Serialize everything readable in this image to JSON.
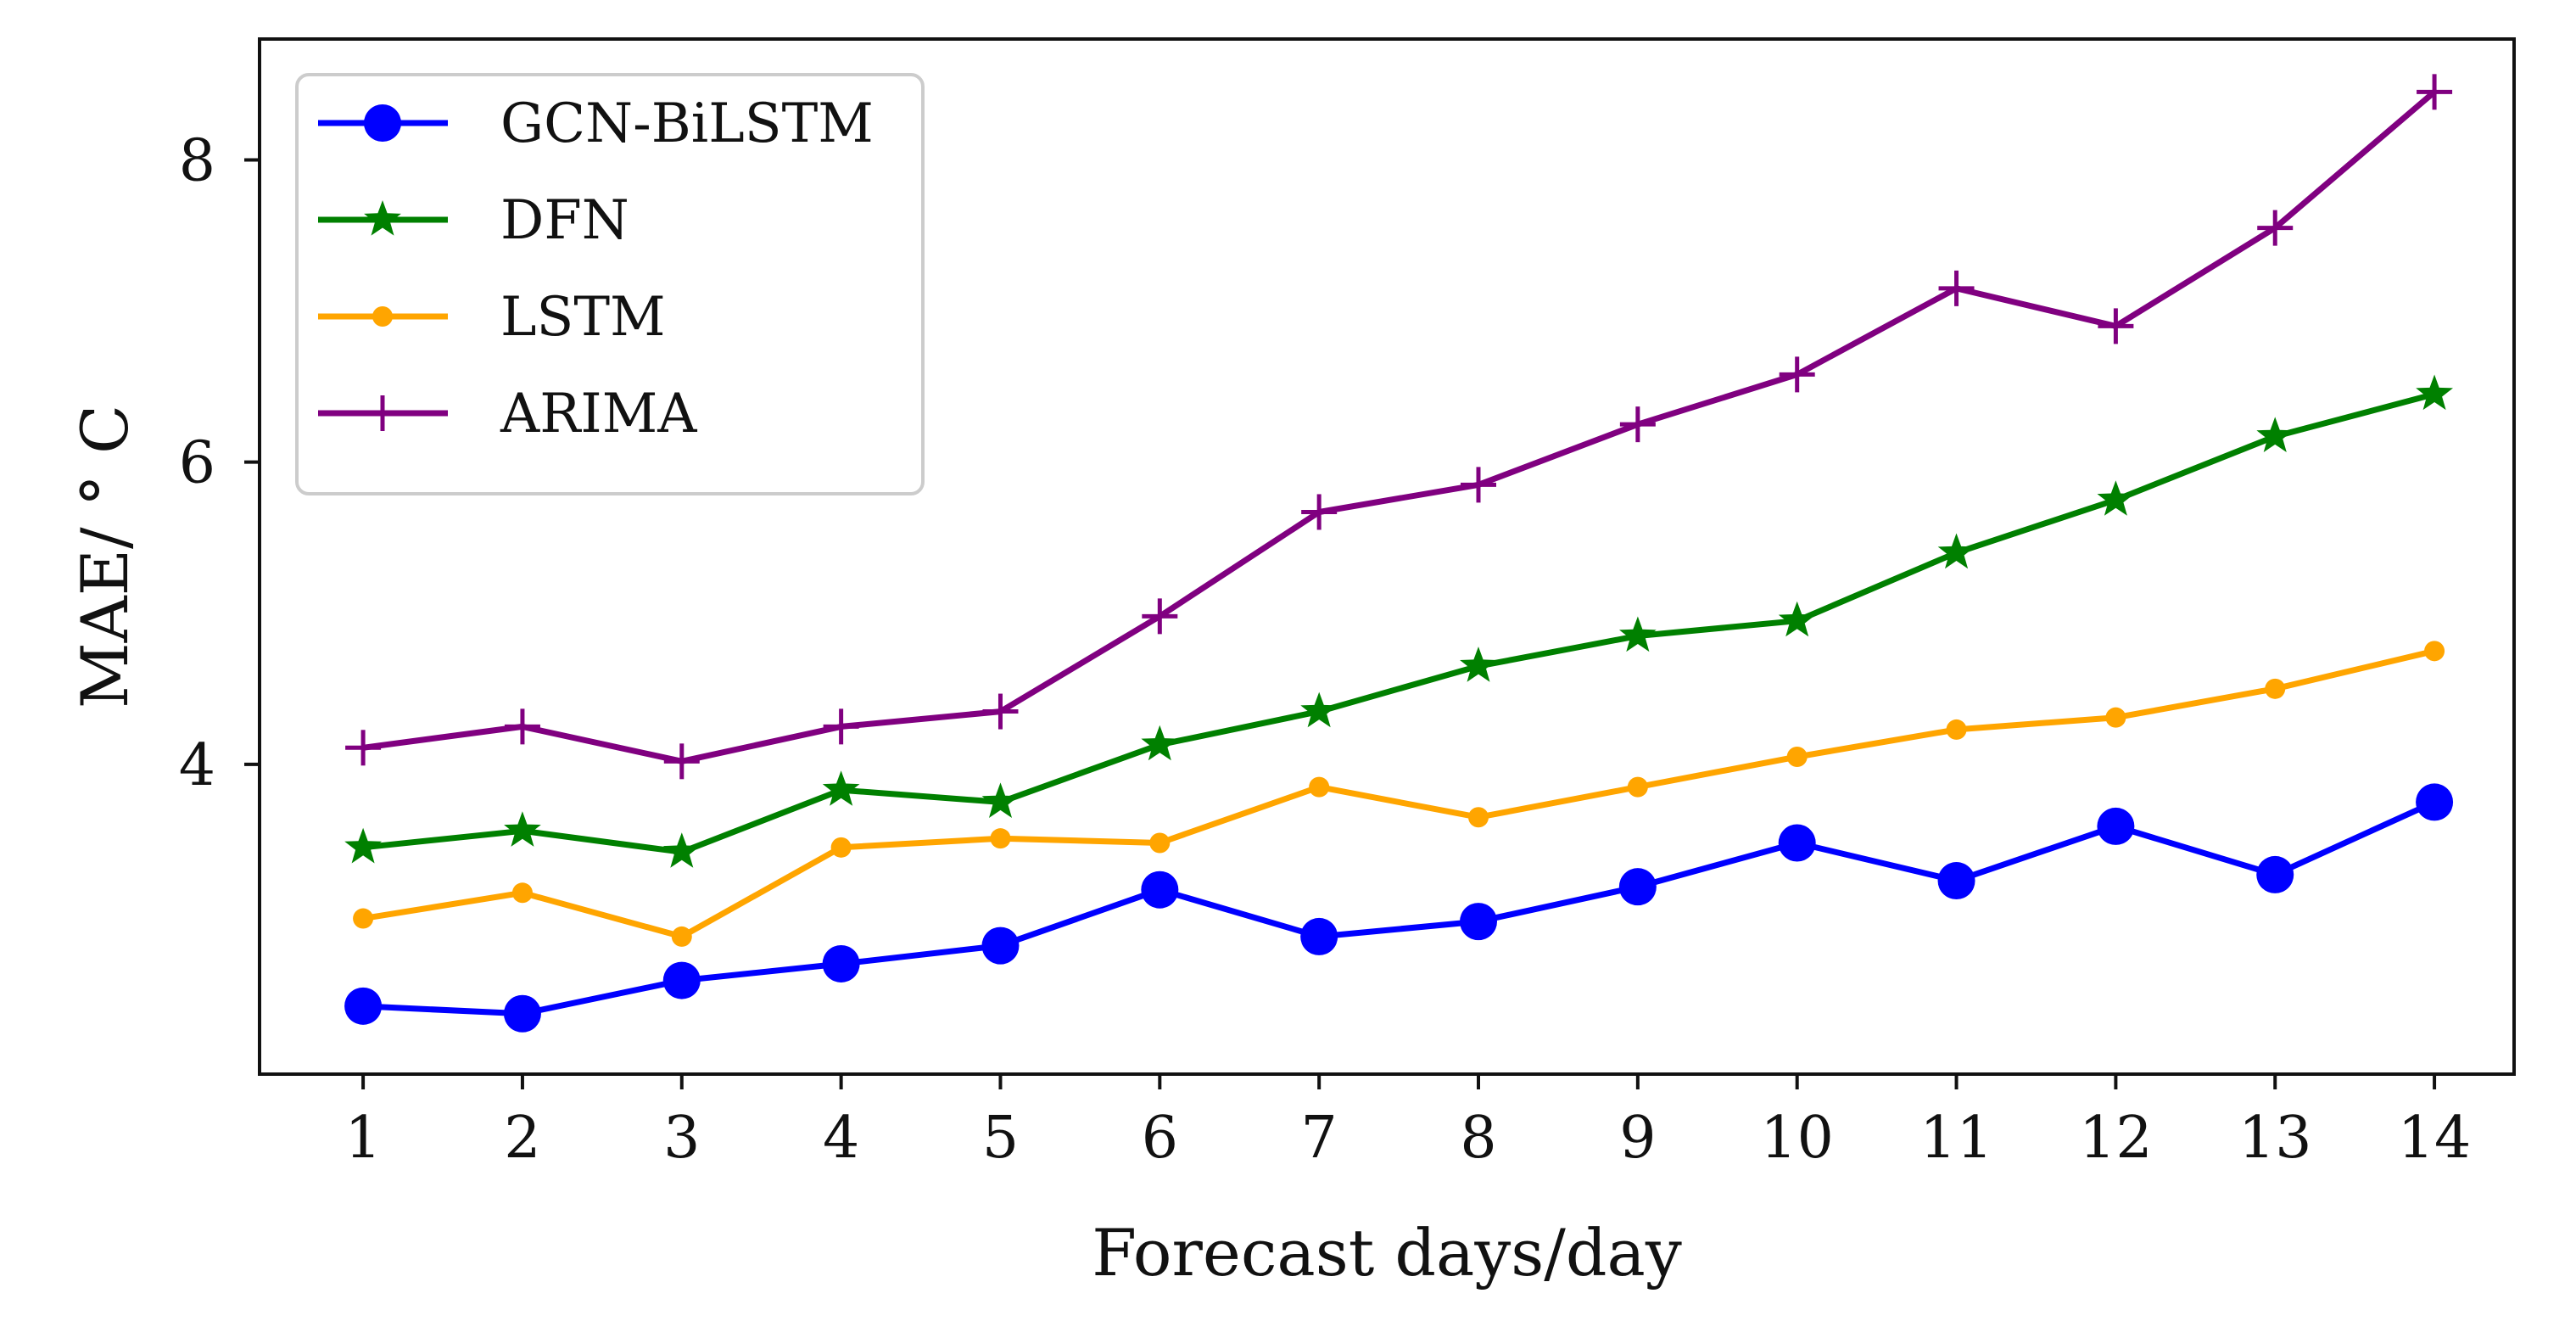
{
  "chart_data": {
    "type": "line",
    "title": "",
    "xlabel": "Forecast days/day",
    "ylabel": "MAE/ ° C",
    "x": [
      1,
      2,
      3,
      4,
      5,
      6,
      7,
      8,
      9,
      10,
      11,
      12,
      13,
      14
    ],
    "x_tick_labels": [
      "1",
      "2",
      "3",
      "4",
      "5",
      "6",
      "7",
      "8",
      "9",
      "10",
      "11",
      "12",
      "13",
      "14"
    ],
    "xlim": [
      0.35,
      14.5
    ],
    "ylim": [
      1.95,
      8.8
    ],
    "y_ticks": [
      4,
      6,
      8
    ],
    "y_tick_labels": [
      "4",
      "6",
      "8"
    ],
    "grid": false,
    "legend_position": "top-left",
    "series": [
      {
        "name": "GCN-BiLSTM",
        "color": "#0000ff",
        "marker": "circle",
        "values": [
          2.4,
          2.35,
          2.57,
          2.68,
          2.8,
          3.17,
          2.86,
          2.96,
          3.19,
          3.48,
          3.23,
          3.59,
          3.27,
          3.75
        ]
      },
      {
        "name": "DFN",
        "color": "#008000",
        "marker": "star",
        "values": [
          3.45,
          3.56,
          3.42,
          3.83,
          3.75,
          4.13,
          4.35,
          4.65,
          4.85,
          4.95,
          5.4,
          5.75,
          6.17,
          6.45
        ]
      },
      {
        "name": "LSTM",
        "color": "#ffa500",
        "marker": "small-circle",
        "values": [
          2.98,
          3.15,
          2.86,
          3.45,
          3.51,
          3.48,
          3.85,
          3.65,
          3.85,
          4.05,
          4.23,
          4.31,
          4.5,
          4.75
        ]
      },
      {
        "name": "ARIMA",
        "color": "#800080",
        "marker": "plus",
        "values": [
          4.11,
          4.25,
          4.02,
          4.25,
          4.35,
          4.98,
          5.67,
          5.85,
          6.25,
          6.58,
          7.15,
          6.9,
          7.55,
          8.45
        ]
      }
    ]
  }
}
